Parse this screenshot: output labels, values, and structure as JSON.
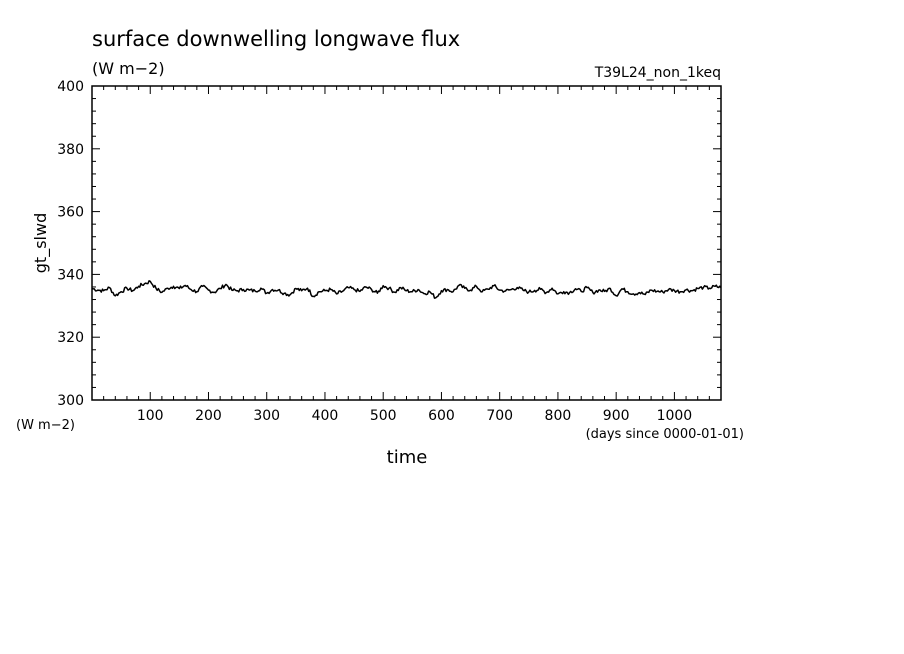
{
  "chart_data": {
    "type": "line",
    "title": "surface downwelling longwave flux",
    "units_label": "(W m−2)",
    "run_label": "T39L24_non_1keq",
    "ylabel": "gt_slwd",
    "yunit_label": "(W m−2)",
    "xlabel": "time",
    "xunit_label": "(days since 0000-01-01)",
    "xlim": [
      0,
      1080
    ],
    "ylim": [
      300,
      400
    ],
    "xticks": [
      100,
      200,
      300,
      400,
      500,
      600,
      700,
      800,
      900,
      1000
    ],
    "yticks": [
      300,
      320,
      340,
      360,
      380,
      400
    ],
    "series": [
      {
        "name": "",
        "color": "#000000",
        "x": [
          0,
          10,
          20,
          30,
          40,
          50,
          60,
          70,
          80,
          90,
          100,
          110,
          120,
          130,
          140,
          150,
          160,
          170,
          180,
          190,
          200,
          210,
          220,
          230,
          240,
          250,
          260,
          270,
          280,
          290,
          300,
          310,
          320,
          330,
          340,
          350,
          360,
          370,
          380,
          390,
          400,
          410,
          420,
          430,
          440,
          450,
          460,
          470,
          480,
          490,
          500,
          510,
          520,
          530,
          540,
          550,
          560,
          570,
          580,
          590,
          600,
          610,
          620,
          630,
          640,
          650,
          660,
          670,
          680,
          690,
          700,
          710,
          720,
          730,
          740,
          750,
          760,
          770,
          780,
          790,
          800,
          810,
          820,
          830,
          840,
          850,
          860,
          870,
          880,
          890,
          900,
          910,
          920,
          930,
          940,
          950,
          960,
          970,
          980,
          990,
          1000,
          1010,
          1020,
          1030,
          1040,
          1050,
          1060,
          1070,
          1080
        ],
        "y": [
          335.5,
          335.0,
          334.8,
          335.8,
          333.2,
          334.5,
          335.6,
          334.8,
          336.2,
          337.0,
          337.8,
          335.5,
          334.3,
          335.6,
          336.2,
          335.5,
          336.5,
          335.2,
          334.5,
          336.2,
          335.0,
          334.3,
          335.5,
          336.8,
          335.0,
          334.8,
          335.2,
          335.0,
          334.7,
          335.6,
          334.0,
          335.2,
          335.0,
          334.0,
          333.5,
          335.5,
          334.8,
          335.6,
          333.0,
          334.5,
          334.8,
          335.2,
          333.8,
          334.6,
          335.8,
          335.2,
          334.6,
          336.0,
          335.2,
          334.0,
          336.4,
          335.6,
          334.3,
          335.8,
          334.8,
          334.5,
          335.2,
          333.9,
          334.5,
          332.5,
          334.8,
          335.2,
          334.5,
          336.5,
          335.6,
          335.0,
          336.2,
          334.5,
          335.3,
          336.4,
          335.0,
          334.7,
          335.2,
          335.8,
          335.0,
          334.4,
          334.9,
          335.3,
          334.2,
          335.6,
          333.8,
          334.5,
          334.2,
          335.4,
          334.6,
          335.8,
          334.2,
          335.0,
          334.6,
          335.5,
          333.2,
          335.4,
          334.5,
          333.8,
          334.2,
          333.6,
          335.0,
          334.6,
          334.4,
          335.2,
          334.9,
          334.5,
          335.1,
          334.8,
          335.5,
          335.9,
          335.6,
          336.2,
          335.8
        ]
      }
    ]
  }
}
